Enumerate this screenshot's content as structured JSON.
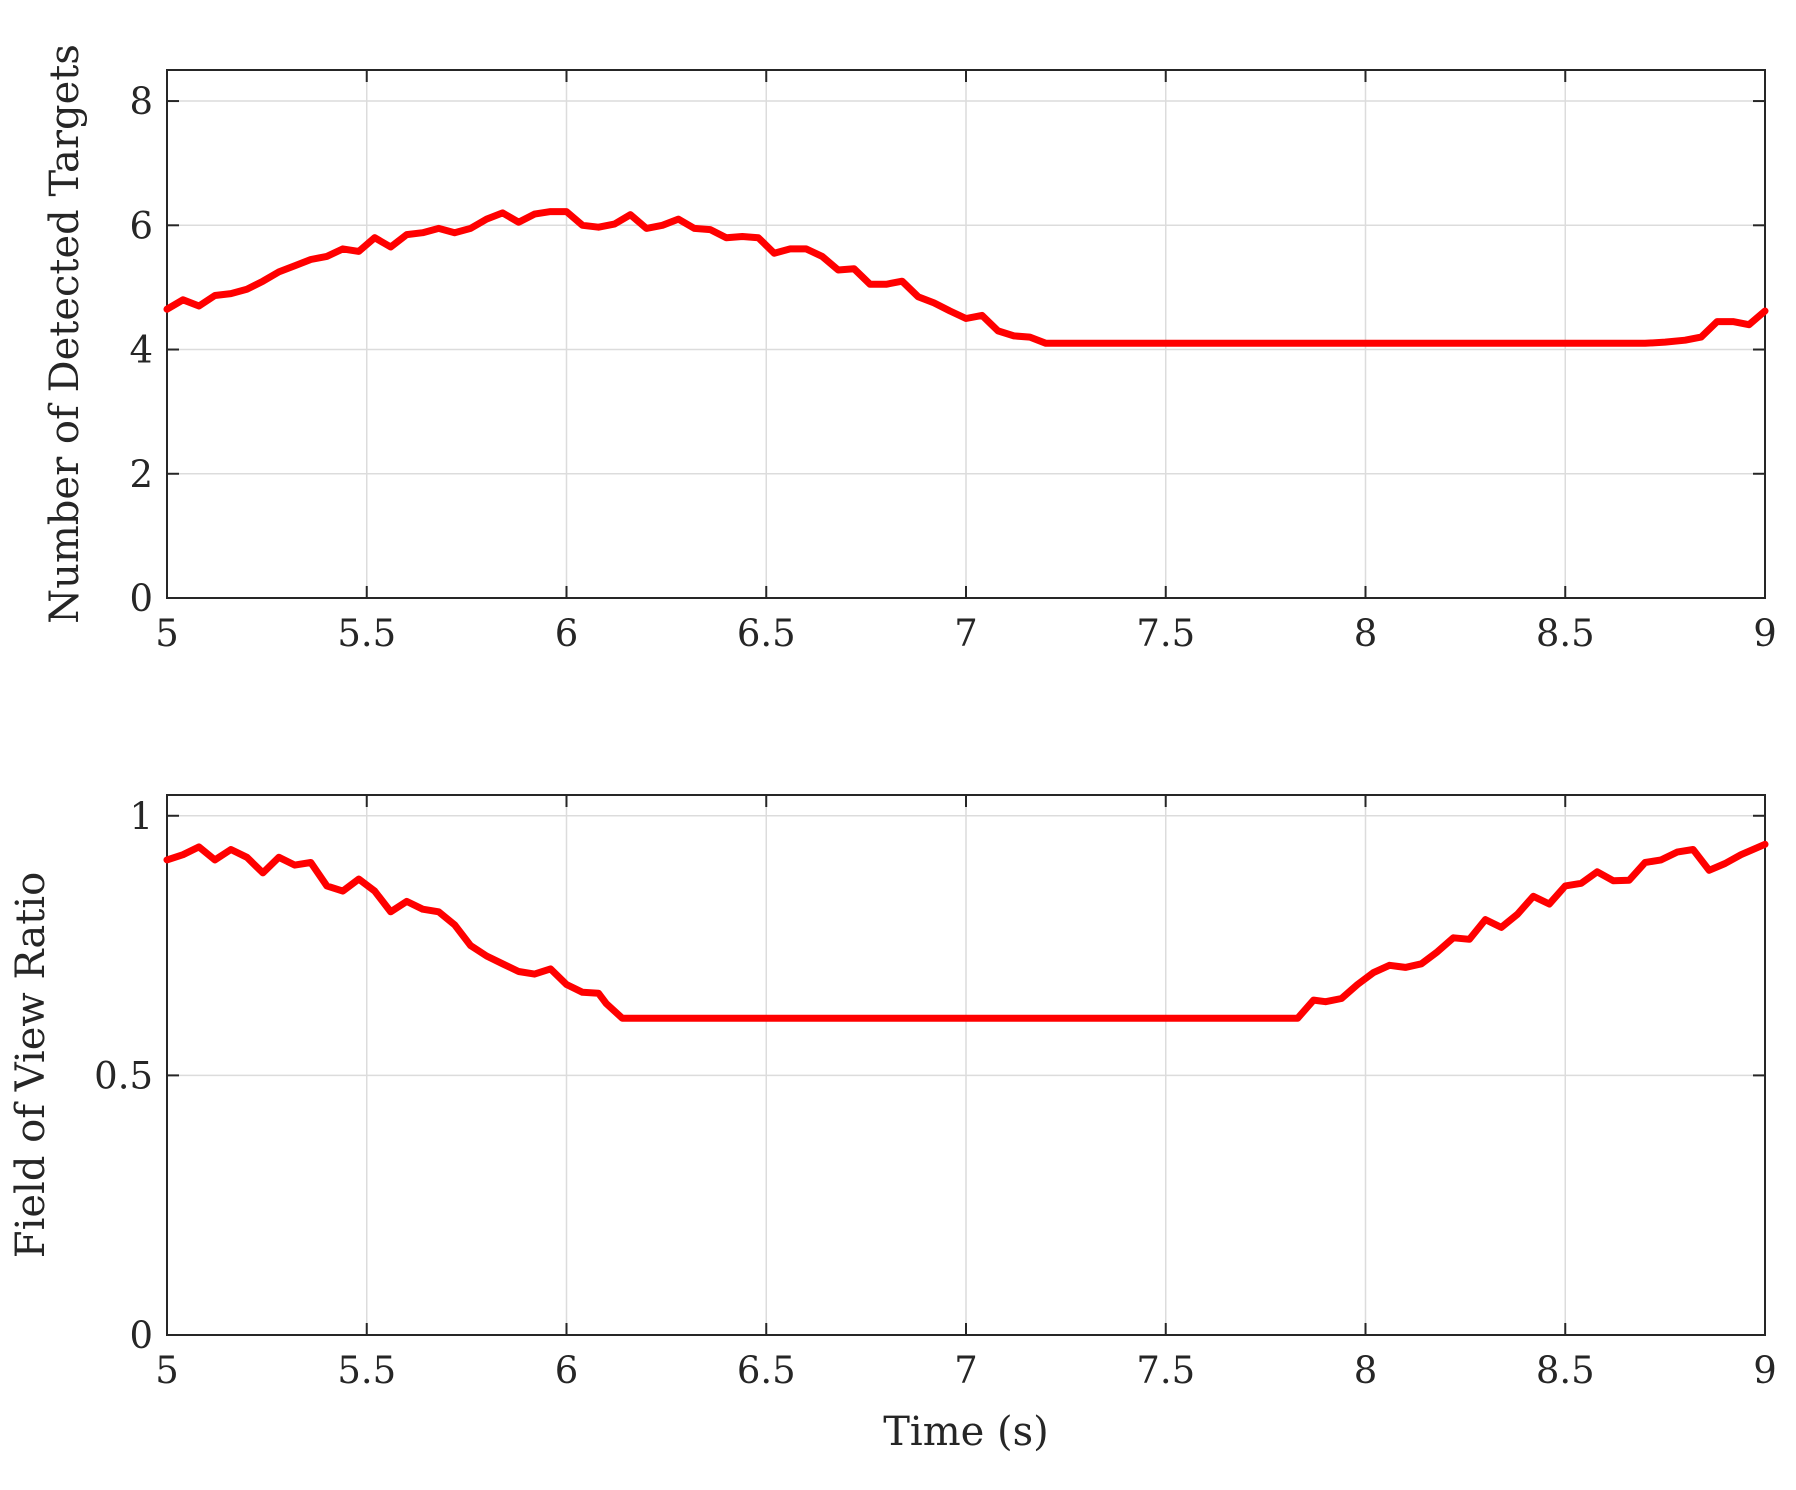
{
  "chart_data": [
    {
      "type": "line",
      "title": "",
      "xlabel": "",
      "ylabel": "Number of Detected Targets",
      "xlim": [
        5,
        9
      ],
      "ylim": [
        0,
        8.5
      ],
      "xticks": [
        5,
        5.5,
        6,
        6.5,
        7,
        7.5,
        8,
        8.5,
        9
      ],
      "xtick_labels": [
        "5",
        "5.5",
        "6",
        "6.5",
        "7",
        "7.5",
        "8",
        "8.5",
        "9"
      ],
      "yticks": [
        0,
        2,
        4,
        6,
        8
      ],
      "ytick_labels": [
        "0",
        "2",
        "4",
        "6",
        "8"
      ],
      "grid": true,
      "series": [
        {
          "color": "#ff0000",
          "x": [
            5,
            5.04,
            5.08,
            5.12,
            5.16,
            5.2,
            5.24,
            5.28,
            5.32,
            5.36,
            5.4,
            5.44,
            5.48,
            5.52,
            5.56,
            5.6,
            5.64,
            5.68,
            5.72,
            5.76,
            5.8,
            5.84,
            5.88,
            5.92,
            5.96,
            6,
            6.04,
            6.08,
            6.12,
            6.16,
            6.2,
            6.24,
            6.28,
            6.32,
            6.36,
            6.4,
            6.44,
            6.48,
            6.52,
            6.56,
            6.6,
            6.64,
            6.68,
            6.72,
            6.76,
            6.8,
            6.84,
            6.88,
            6.92,
            6.96,
            7,
            7.04,
            7.08,
            7.12,
            7.16,
            7.2,
            7.24,
            7.3,
            7.4,
            7.5,
            7.6,
            7.7,
            7.8,
            7.9,
            8,
            8.1,
            8.2,
            8.3,
            8.4,
            8.5,
            8.6,
            8.7,
            8.75,
            8.8,
            8.84,
            8.88,
            8.92,
            8.96,
            9
          ],
          "y": [
            4.65,
            4.8,
            4.7,
            4.87,
            4.9,
            4.97,
            5.1,
            5.25,
            5.35,
            5.45,
            5.5,
            5.62,
            5.58,
            5.8,
            5.65,
            5.85,
            5.88,
            5.95,
            5.88,
            5.95,
            6.1,
            6.2,
            6.05,
            6.18,
            6.22,
            6.22,
            6.0,
            5.97,
            6.02,
            6.17,
            5.95,
            6.0,
            6.1,
            5.95,
            5.93,
            5.8,
            5.82,
            5.8,
            5.55,
            5.62,
            5.62,
            5.5,
            5.28,
            5.3,
            5.05,
            5.05,
            5.1,
            4.85,
            4.75,
            4.62,
            4.5,
            4.55,
            4.3,
            4.22,
            4.2,
            4.1,
            4.1,
            4.1,
            4.1,
            4.1,
            4.1,
            4.1,
            4.1,
            4.1,
            4.1,
            4.1,
            4.1,
            4.1,
            4.1,
            4.1,
            4.1,
            4.1,
            4.12,
            4.15,
            4.2,
            4.45,
            4.45,
            4.4,
            4.62
          ]
        }
      ]
    },
    {
      "type": "line",
      "title": "",
      "xlabel": "Time (s)",
      "ylabel": "Field of View Ratio",
      "xlim": [
        5,
        9
      ],
      "ylim": [
        0,
        1.04
      ],
      "xticks": [
        5,
        5.5,
        6,
        6.5,
        7,
        7.5,
        8,
        8.5,
        9
      ],
      "xtick_labels": [
        "5",
        "5.5",
        "6",
        "6.5",
        "7",
        "7.5",
        "8",
        "8.5",
        "9"
      ],
      "yticks": [
        0,
        0.5,
        1
      ],
      "ytick_labels": [
        "0",
        "0.5",
        "1"
      ],
      "grid": true,
      "series": [
        {
          "color": "#ff0000",
          "x": [
            5,
            5.04,
            5.08,
            5.12,
            5.16,
            5.2,
            5.24,
            5.28,
            5.32,
            5.36,
            5.4,
            5.44,
            5.48,
            5.52,
            5.56,
            5.6,
            5.64,
            5.68,
            5.72,
            5.76,
            5.8,
            5.84,
            5.88,
            5.92,
            5.96,
            6,
            6.04,
            6.08,
            6.1,
            6.14,
            6.3,
            6.5,
            6.7,
            6.9,
            7.1,
            7.3,
            7.5,
            7.7,
            7.83,
            7.87,
            7.9,
            7.94,
            7.98,
            8.02,
            8.06,
            8.1,
            8.14,
            8.18,
            8.22,
            8.26,
            8.3,
            8.34,
            8.38,
            8.42,
            8.46,
            8.5,
            8.54,
            8.58,
            8.62,
            8.66,
            8.7,
            8.74,
            8.78,
            8.82,
            8.86,
            8.9,
            8.94,
            9
          ],
          "y": [
            0.915,
            0.925,
            0.94,
            0.915,
            0.935,
            0.92,
            0.89,
            0.92,
            0.905,
            0.91,
            0.865,
            0.855,
            0.878,
            0.855,
            0.815,
            0.835,
            0.82,
            0.815,
            0.79,
            0.75,
            0.73,
            0.715,
            0.7,
            0.695,
            0.705,
            0.675,
            0.66,
            0.658,
            0.638,
            0.61,
            0.61,
            0.61,
            0.61,
            0.61,
            0.61,
            0.61,
            0.61,
            0.61,
            0.61,
            0.645,
            0.642,
            0.648,
            0.675,
            0.698,
            0.712,
            0.708,
            0.715,
            0.738,
            0.765,
            0.762,
            0.8,
            0.785,
            0.81,
            0.845,
            0.83,
            0.865,
            0.87,
            0.892,
            0.875,
            0.876,
            0.91,
            0.915,
            0.93,
            0.935,
            0.895,
            0.908,
            0.925,
            0.945
          ]
        }
      ]
    }
  ]
}
